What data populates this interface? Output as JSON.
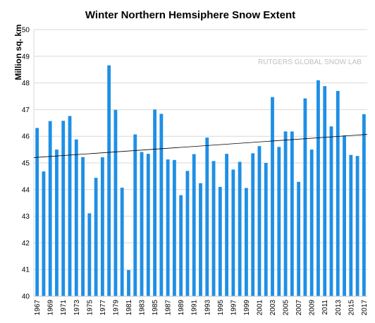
{
  "chart_data": {
    "type": "bar",
    "title": "Winter Northern Hemsiphere Snow Extent",
    "xlabel": "",
    "ylabel": "Million sq. km",
    "annotation": "RUTGERS GLOBAL SNOW LAB",
    "ylim": [
      40,
      50
    ],
    "yticks": [
      40,
      41,
      42,
      43,
      44,
      45,
      46,
      47,
      48,
      49,
      50
    ],
    "grid": true,
    "legend": "none",
    "bar_color": "#1f8fe5",
    "trendline": {
      "start": 45.2,
      "end": 46.07,
      "color": "#000000"
    },
    "x_tick_labels": [
      "1967",
      "1969",
      "1971",
      "1973",
      "1975",
      "1977",
      "1979",
      "1981",
      "1983",
      "1985",
      "1987",
      "1989",
      "1991",
      "1993",
      "1995",
      "1997",
      "1999",
      "2001",
      "2003",
      "2005",
      "2007",
      "2009",
      "2011",
      "2013",
      "2015",
      "2017"
    ],
    "categories": [
      "1967",
      "1968",
      "1969",
      "1970",
      "1971",
      "1972",
      "1973",
      "1974",
      "1975",
      "1976",
      "1977",
      "1978",
      "1979",
      "1980",
      "1981",
      "1982",
      "1983",
      "1984",
      "1985",
      "1986",
      "1987",
      "1988",
      "1989",
      "1990",
      "1991",
      "1992",
      "1993",
      "1994",
      "1995",
      "1996",
      "1997",
      "1998",
      "1999",
      "2000",
      "2001",
      "2002",
      "2003",
      "2004",
      "2005",
      "2006",
      "2007",
      "2008",
      "2009",
      "2010",
      "2011",
      "2012",
      "2013",
      "2014",
      "2015",
      "2016",
      "2017"
    ],
    "values": [
      46.31,
      44.68,
      46.57,
      45.5,
      46.58,
      46.76,
      45.88,
      45.22,
      43.11,
      44.44,
      45.21,
      48.66,
      46.99,
      44.07,
      40.98,
      46.07,
      45.41,
      45.34,
      47.0,
      46.84,
      45.13,
      45.11,
      43.79,
      44.7,
      45.33,
      44.24,
      45.95,
      45.07,
      44.1,
      45.34,
      44.75,
      45.04,
      44.06,
      45.36,
      45.63,
      45.0,
      47.47,
      45.6,
      46.18,
      46.18,
      44.29,
      47.42,
      45.5,
      48.1,
      47.88,
      46.37,
      47.7,
      46.03,
      45.3,
      45.26,
      46.83
    ]
  }
}
